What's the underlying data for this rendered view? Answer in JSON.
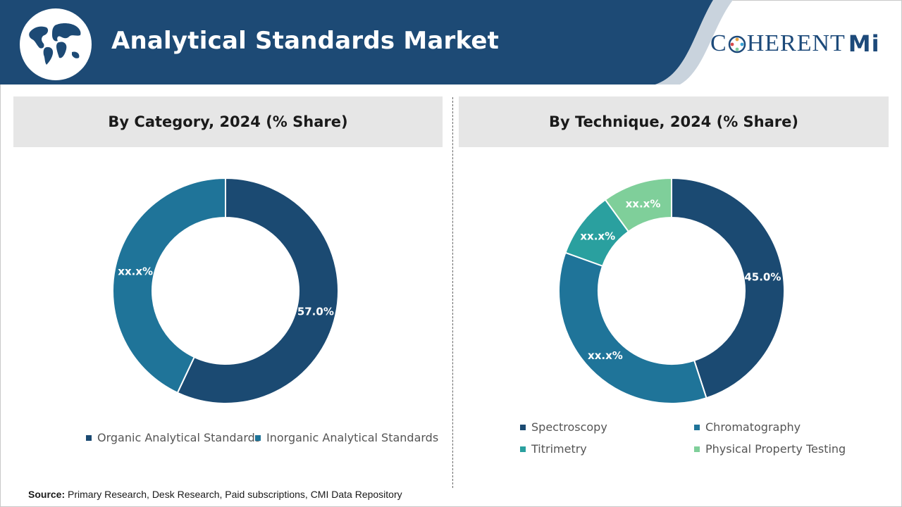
{
  "header": {
    "title": "Analytical Standards Market",
    "logo_left": "C",
    "logo_right": "HERENT",
    "logo_mi": "Mi"
  },
  "colors": {
    "header_bg": "#1d4a75",
    "navy": "#1b4a72",
    "blue": "#1f7499",
    "teal": "#2aa09f",
    "green": "#7fcf9a"
  },
  "panels": [
    {
      "title": "By Category, 2024 (% Share)"
    },
    {
      "title": "By Technique, 2024 (% Share)"
    }
  ],
  "chart_data": [
    {
      "type": "pie",
      "title": "By Category, 2024 (% Share)",
      "donut": true,
      "categories": [
        "Organic Analytical Standards",
        "Inorganic Analytical Standards"
      ],
      "values": [
        57.0,
        43.0
      ],
      "labels": [
        "57.0%",
        "xx.x%"
      ],
      "colors": [
        "#1b4a72",
        "#1f7499"
      ],
      "legend": "bottom"
    },
    {
      "type": "pie",
      "title": "By Technique, 2024 (% Share)",
      "donut": true,
      "categories": [
        "Spectroscopy",
        "Chromatography",
        "Titrimetry",
        "Physical Property Testing"
      ],
      "values": [
        45.0,
        35.5,
        9.5,
        10.0
      ],
      "labels": [
        "45.0%",
        "xx.x%",
        "xx.x%",
        "xx.x%"
      ],
      "colors": [
        "#1b4a72",
        "#1f7499",
        "#2aa09f",
        "#7fcf9a"
      ],
      "legend": "bottom"
    }
  ],
  "source": {
    "label": "Source:",
    "text": "Primary Research, Desk Research, Paid subscriptions, CMI Data Repository"
  }
}
